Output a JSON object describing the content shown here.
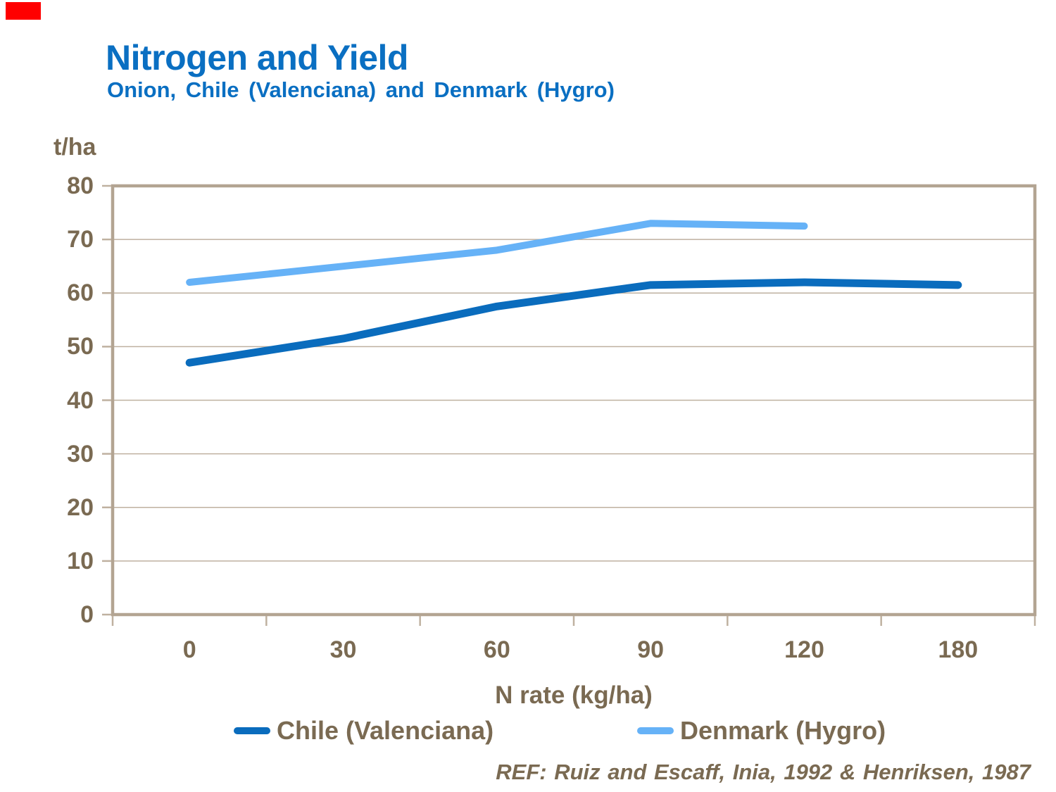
{
  "chart_data": {
    "type": "line",
    "title": "Nitrogen and Yield",
    "subtitle": "Onion, Chile (Valenciana) and Denmark (Hygro)",
    "xlabel": "N rate (kg/ha)",
    "ylabel": "t/ha",
    "categories": [
      "0",
      "30",
      "60",
      "90",
      "120",
      "180"
    ],
    "x_axis_type": "category-equal-spacing",
    "ylim": [
      0,
      80
    ],
    "ytick_step": 10,
    "grid": "horizontal",
    "legend_position": "bottom",
    "series": [
      {
        "name": "Chile (Valenciana)",
        "color": "#0A6CBD",
        "values": [
          47,
          51.5,
          57.5,
          61.5,
          62,
          61.5
        ]
      },
      {
        "name": "Denmark (Hygro)",
        "color": "#66B2F7",
        "values": [
          62,
          65,
          68,
          73,
          72.5,
          null
        ]
      }
    ]
  },
  "header": {
    "title_color": "#0A6FC2"
  },
  "axis": {
    "label_color": "#7A6A52",
    "grid_color": "#BFB1A0",
    "border_color": "#B3A492"
  },
  "decoration": {
    "corner_marker_color": "#FF0000"
  },
  "footer": {
    "ref": "REF: Ruiz and Escaff, Inia, 1992 & Henriksen, 1987"
  }
}
